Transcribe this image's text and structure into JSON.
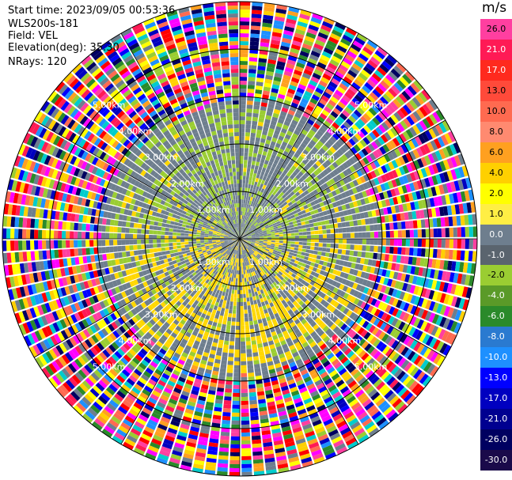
{
  "header": {
    "start_time": "Start time: 2023/09/05 00:53:36",
    "instrument": "WLS200s-181",
    "field": "Field: VEL",
    "elevation": "Elevation(deg): 35.30",
    "nrays": "NRays: 120"
  },
  "colorbar": {
    "unit_label": "m/s",
    "bins": [
      {
        "label": "26.0",
        "color": "#ff3fa0"
      },
      {
        "label": "21.0",
        "color": "#ff1a55"
      },
      {
        "label": "17.0",
        "color": "#ff2a1e"
      },
      {
        "label": "13.0",
        "color": "#ff4a3a"
      },
      {
        "label": "10.0",
        "color": "#ff6a50"
      },
      {
        "label": "8.0",
        "color": "#ff8a70"
      },
      {
        "label": "6.0",
        "color": "#ffa020"
      },
      {
        "label": "4.0",
        "color": "#ffd000"
      },
      {
        "label": "2.0",
        "color": "#ffff00"
      },
      {
        "label": "1.0",
        "color": "#ffee44"
      },
      {
        "label": "0.0",
        "color": "#6e7e8e"
      },
      {
        "label": "-1.0",
        "color": "#5a646e"
      },
      {
        "label": "-2.0",
        "color": "#9acd32"
      },
      {
        "label": "-4.0",
        "color": "#5a9a28"
      },
      {
        "label": "-6.0",
        "color": "#2a8a2a"
      },
      {
        "label": "-8.0",
        "color": "#2a7ad0"
      },
      {
        "label": "-10.0",
        "color": "#1e90ff"
      },
      {
        "label": "-13.0",
        "color": "#0000ff"
      },
      {
        "label": "-17.0",
        "color": "#0000c0"
      },
      {
        "label": "-21.0",
        "color": "#000090"
      },
      {
        "label": "-26.0",
        "color": "#000060"
      },
      {
        "label": "-30.0",
        "color": "#1a0a4a"
      }
    ]
  },
  "plot": {
    "range_rings_km": [
      "1.00km",
      "2.00km",
      "3.00km",
      "4.00km",
      "5.00km"
    ],
    "noise_palette": [
      "#ff00ff",
      "#ff3fa0",
      "#ff1a55",
      "#ff0000",
      "#ffff00",
      "#ffd000",
      "#ffa020",
      "#1e90ff",
      "#0000ff",
      "#0000c0",
      "#000060",
      "#2a8a2a",
      "#9acd32",
      "#6e7e8e",
      "#ff6a50",
      "#00cccc"
    ],
    "inner_colors": {
      "zero": "#6e7e8e",
      "pos": "#ffd700",
      "neg": "#9acd32"
    }
  }
}
